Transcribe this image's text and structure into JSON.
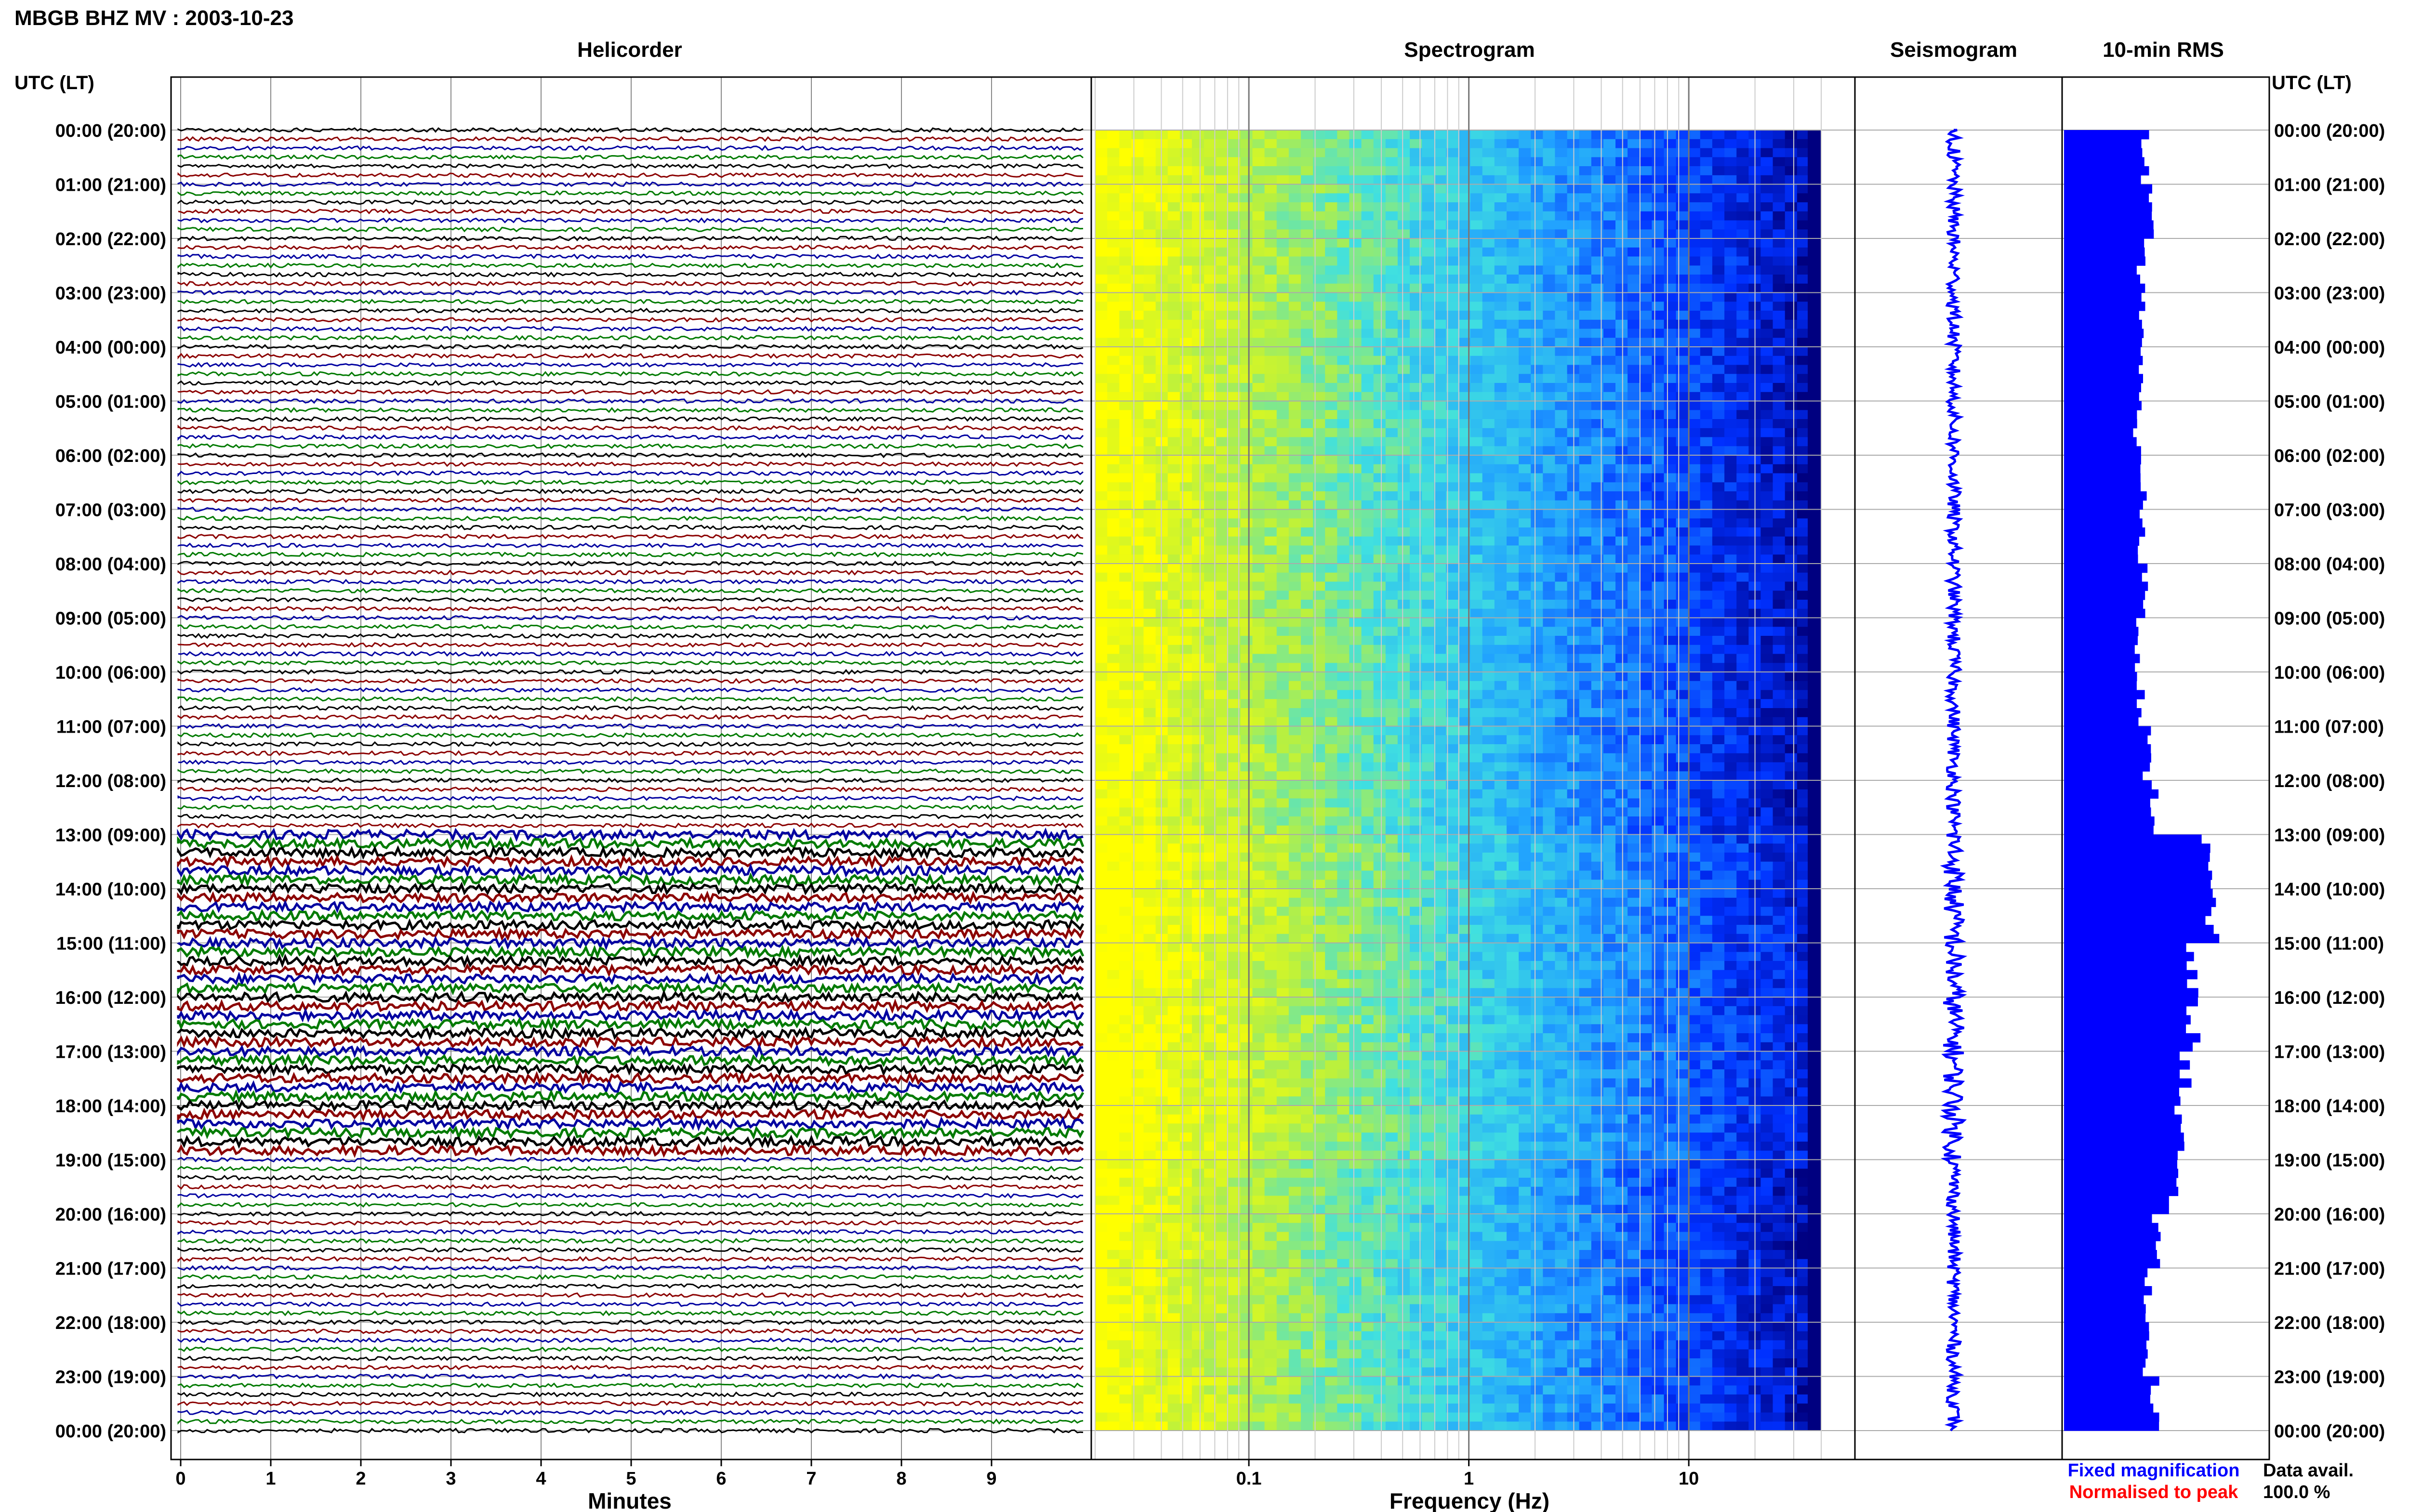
{
  "header": {
    "title": "MBGB BHZ MV : 2003-10-23",
    "axis_left_caption": "UTC (LT)",
    "axis_right_caption": "UTC (LT)"
  },
  "panels": {
    "helicorder": "Helicorder",
    "spectrogram": "Spectrogram",
    "seismogram": "Seismogram",
    "rms": "10-min RMS"
  },
  "footer": {
    "helicorder_xlabel": "Minutes",
    "spectrogram_xlabel": "Frequency (Hz)",
    "legend_fixed": "Fixed magnification",
    "legend_normalised": "Normalised to peak",
    "data_avail_label": "Data avail.",
    "data_avail_value": "100.0 %"
  },
  "colors": {
    "fixed_magnification": "#0000ff",
    "normalised_to_peak": "#ff0000",
    "trace_colors": [
      "#000000",
      "#8b0000",
      "#0000a0",
      "#007a00"
    ],
    "seismogram": "#0000ff",
    "rms_bars": "#0000ff",
    "spectrogram_ramp": [
      "#ffff00",
      "#b8f040",
      "#40e0e0",
      "#20a0ff",
      "#0030ff",
      "#000080"
    ]
  },
  "chart_data": [
    {
      "type": "line",
      "name": "helicorder",
      "title": "Helicorder",
      "xlabel": "Minutes",
      "ylabel": "UTC (LT)",
      "xlim": [
        0,
        10
      ],
      "xticks": [
        0,
        1,
        2,
        3,
        4,
        5,
        6,
        7,
        8,
        9
      ],
      "ylim": [
        "00:00",
        "24:00"
      ],
      "yticks": [
        "00:00 (20:00)",
        "01:00 (21:00)",
        "02:00 (22:00)",
        "03:00 (23:00)",
        "04:00 (00:00)",
        "05:00 (01:00)",
        "06:00 (02:00)",
        "07:00 (03:00)",
        "08:00 (04:00)",
        "09:00 (05:00)",
        "10:00 (06:00)",
        "11:00 (07:00)",
        "12:00 (08:00)",
        "13:00 (09:00)",
        "14:00 (10:00)",
        "15:00 (11:00)",
        "16:00 (12:00)",
        "17:00 (13:00)",
        "18:00 (14:00)",
        "19:00 (15:00)",
        "20:00 (16:00)",
        "21:00 (17:00)",
        "22:00 (18:00)",
        "23:00 (19:00)",
        "00:00 (20:00)"
      ],
      "lines_per_hour": 6,
      "trace_color_cycle": [
        "black",
        "darkred",
        "blue",
        "green"
      ],
      "elevated_activity_utc": [
        "13:00",
        "19:00"
      ],
      "grid": true
    },
    {
      "type": "heatmap",
      "name": "spectrogram",
      "title": "Spectrogram",
      "xlabel": "Frequency (Hz)",
      "x_scale": "log",
      "xlim": [
        0.02,
        40
      ],
      "xtick_labels": [
        "0.1",
        "1",
        "10"
      ],
      "colormap": "yellow (high power, low frequency) to dark blue (low power, high frequency)",
      "grid": true
    },
    {
      "type": "line",
      "name": "seismogram",
      "title": "Seismogram",
      "color": "blue"
    },
    {
      "type": "bar",
      "name": "rms",
      "title": "10-min RMS",
      "orientation": "horizontal",
      "categories": [
        "00:00",
        "01:00",
        "02:00",
        "03:00",
        "04:00",
        "05:00",
        "06:00",
        "07:00",
        "08:00",
        "09:00",
        "10:00",
        "11:00",
        "12:00",
        "13:00",
        "14:00",
        "15:00",
        "16:00",
        "17:00",
        "18:00",
        "19:00",
        "20:00",
        "21:00",
        "22:00",
        "23:00"
      ],
      "values": [
        0.42,
        0.44,
        0.4,
        0.41,
        0.39,
        0.38,
        0.41,
        0.4,
        0.42,
        0.39,
        0.4,
        0.43,
        0.47,
        0.74,
        0.76,
        0.66,
        0.67,
        0.63,
        0.6,
        0.56,
        0.48,
        0.44,
        0.43,
        0.47
      ],
      "xlim": [
        0,
        1
      ],
      "color": "blue",
      "legend": [
        {
          "label": "Fixed magnification",
          "color": "blue"
        },
        {
          "label": "Normalised to peak",
          "color": "red"
        }
      ]
    }
  ]
}
